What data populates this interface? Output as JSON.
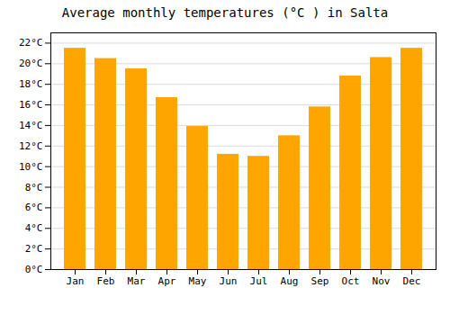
{
  "chart_data": {
    "type": "bar",
    "title": "Average monthly temperatures (°C ) in Salta",
    "categories": [
      "Jan",
      "Feb",
      "Mar",
      "Apr",
      "May",
      "Jun",
      "Jul",
      "Aug",
      "Sep",
      "Oct",
      "Nov",
      "Dec"
    ],
    "values": [
      21.5,
      20.5,
      19.5,
      16.7,
      13.9,
      11.2,
      11.0,
      13.0,
      15.8,
      18.8,
      20.6,
      21.5
    ],
    "color": "#FFA500",
    "ylim": [
      0,
      23
    ],
    "yticks": [
      {
        "value": 0,
        "label": "0°C"
      },
      {
        "value": 2,
        "label": "2°C"
      },
      {
        "value": 4,
        "label": "4°C"
      },
      {
        "value": 6,
        "label": "6°C"
      },
      {
        "value": 8,
        "label": "8°C"
      },
      {
        "value": 10,
        "label": "10°C"
      },
      {
        "value": 12,
        "label": "12°C"
      },
      {
        "value": 14,
        "label": "14°C"
      },
      {
        "value": 16,
        "label": "16°C"
      },
      {
        "value": 18,
        "label": "18°C"
      },
      {
        "value": 20,
        "label": "20°C"
      },
      {
        "value": 22,
        "label": "22°C"
      }
    ],
    "grid": true
  }
}
